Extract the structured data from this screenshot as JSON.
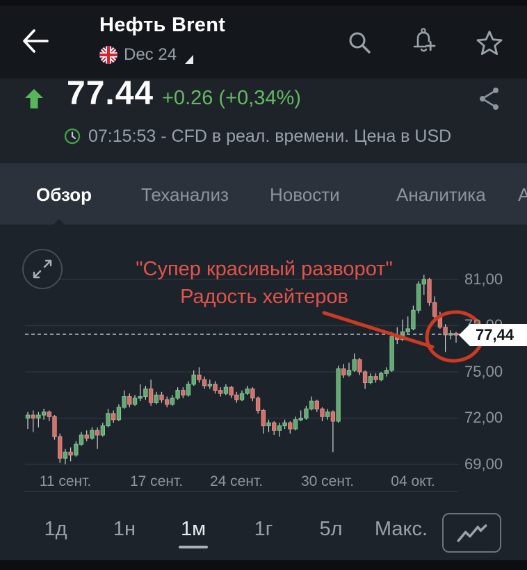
{
  "header": {
    "title": "Нефть Brent",
    "contract": "Dec 24",
    "flag": "uk-flag"
  },
  "price": {
    "value": "77.44",
    "change": "+0.26 (+0,34%)",
    "info": "07:15:53 - CFD в реал. времени. Цена в USD"
  },
  "tabs": [
    {
      "label": "Обзор",
      "active": true
    },
    {
      "label": "Теханализ",
      "active": false
    },
    {
      "label": "Новости",
      "active": false
    },
    {
      "label": "Аналитика",
      "active": false
    },
    {
      "label": "А",
      "active": false
    }
  ],
  "annotation": {
    "line1": "\"Супер красивый разворот\"",
    "line2": "Радость хейтеров"
  },
  "price_tag": "77,44",
  "chart_data": {
    "type": "candlestick",
    "title": "Нефть Brent, 1м",
    "current_price": 77.44,
    "y_axis": {
      "values": [
        81,
        78,
        75,
        72,
        69
      ],
      "labels": [
        "81,00",
        "78,00",
        "75,00",
        "72,00",
        "69,00"
      ],
      "position": "right"
    },
    "x_axis": {
      "labels": [
        "11 сент.",
        "17 сент.",
        "24 сент.",
        "30 сент.",
        "04 окт."
      ],
      "tick_candle_index": [
        7,
        24,
        39,
        56,
        72
      ]
    },
    "grid": "horizontal-only",
    "candles_ohlc": [
      [
        72.0,
        72.4,
        71.3,
        72.2
      ],
      [
        72.2,
        72.5,
        71.1,
        72.0
      ],
      [
        72.0,
        72.4,
        71.4,
        72.2
      ],
      [
        72.2,
        72.6,
        71.9,
        72.4
      ],
      [
        72.4,
        72.5,
        71.8,
        72.1
      ],
      [
        72.1,
        72.2,
        70.6,
        70.8
      ],
      [
        70.8,
        71.0,
        69.1,
        69.4
      ],
      [
        69.4,
        70.0,
        69.0,
        69.8
      ],
      [
        69.8,
        70.1,
        69.2,
        69.6
      ],
      [
        69.6,
        70.5,
        69.5,
        70.3
      ],
      [
        70.3,
        71.1,
        70.2,
        70.9
      ],
      [
        70.9,
        71.2,
        70.5,
        70.7
      ],
      [
        70.7,
        71.4,
        70.6,
        71.2
      ],
      [
        71.2,
        71.4,
        70.0,
        70.9
      ],
      [
        70.9,
        71.7,
        70.8,
        71.5
      ],
      [
        71.5,
        72.6,
        71.4,
        72.3
      ],
      [
        72.3,
        72.5,
        71.7,
        71.9
      ],
      [
        71.9,
        72.9,
        71.8,
        72.7
      ],
      [
        72.7,
        73.8,
        72.6,
        73.4
      ],
      [
        73.4,
        73.6,
        72.7,
        72.9
      ],
      [
        72.9,
        73.5,
        72.8,
        73.3
      ],
      [
        73.3,
        74.2,
        73.1,
        73.4
      ],
      [
        73.4,
        74.1,
        73.2,
        73.9
      ],
      [
        73.9,
        74.5,
        72.8,
        73.0
      ],
      [
        73.0,
        73.7,
        72.9,
        73.5
      ],
      [
        73.5,
        73.7,
        73.0,
        73.2
      ],
      [
        73.2,
        73.4,
        72.7,
        72.9
      ],
      [
        72.9,
        73.5,
        72.8,
        73.3
      ],
      [
        73.3,
        74.0,
        73.2,
        73.8
      ],
      [
        73.8,
        74.0,
        73.3,
        73.5
      ],
      [
        73.5,
        74.4,
        73.4,
        74.2
      ],
      [
        74.2,
        75.1,
        74.1,
        74.8
      ],
      [
        74.8,
        75.3,
        74.3,
        74.5
      ],
      [
        74.5,
        74.7,
        73.9,
        74.1
      ],
      [
        74.1,
        74.5,
        73.9,
        74.2
      ],
      [
        74.2,
        74.4,
        73.6,
        73.8
      ],
      [
        73.8,
        74.0,
        73.4,
        73.6
      ],
      [
        73.6,
        74.2,
        73.5,
        74.0
      ],
      [
        74.0,
        74.1,
        73.3,
        73.5
      ],
      [
        73.5,
        73.7,
        73.0,
        73.2
      ],
      [
        73.2,
        73.8,
        73.1,
        73.6
      ],
      [
        73.6,
        74.1,
        73.5,
        73.9
      ],
      [
        73.9,
        74.0,
        73.1,
        73.3
      ],
      [
        73.3,
        73.4,
        72.3,
        72.5
      ],
      [
        72.5,
        72.6,
        71.0,
        71.5
      ],
      [
        71.5,
        71.9,
        71.1,
        71.7
      ],
      [
        71.7,
        71.8,
        70.9,
        71.2
      ],
      [
        71.2,
        71.7,
        70.8,
        71.5
      ],
      [
        71.5,
        71.9,
        71.3,
        71.7
      ],
      [
        71.7,
        71.8,
        71.0,
        71.3
      ],
      [
        71.3,
        72.1,
        71.2,
        71.9
      ],
      [
        71.9,
        72.5,
        71.8,
        72.0
      ],
      [
        72.0,
        72.8,
        71.9,
        72.6
      ],
      [
        72.6,
        73.4,
        72.5,
        73.1
      ],
      [
        73.1,
        73.2,
        72.4,
        72.6
      ],
      [
        72.6,
        72.7,
        71.8,
        72.1
      ],
      [
        72.1,
        72.6,
        71.9,
        72.4
      ],
      [
        72.4,
        72.5,
        69.8,
        71.8
      ],
      [
        71.8,
        75.4,
        71.7,
        75.2
      ],
      [
        75.2,
        75.5,
        74.6,
        74.8
      ],
      [
        74.8,
        75.6,
        74.7,
        75.1
      ],
      [
        75.1,
        76.2,
        75.0,
        75.8
      ],
      [
        75.8,
        75.9,
        74.8,
        75.0
      ],
      [
        75.0,
        75.1,
        73.9,
        74.3
      ],
      [
        74.3,
        74.9,
        74.2,
        74.7
      ],
      [
        74.7,
        74.9,
        74.3,
        74.5
      ],
      [
        74.5,
        75.0,
        74.4,
        74.9
      ],
      [
        74.9,
        75.3,
        74.7,
        75.1
      ],
      [
        75.1,
        77.6,
        75.0,
        77.3
      ],
      [
        77.3,
        77.9,
        76.8,
        77.1
      ],
      [
        77.1,
        78.4,
        77.0,
        77.6
      ],
      [
        77.6,
        78.6,
        77.4,
        77.8
      ],
      [
        77.8,
        79.3,
        77.7,
        79.0
      ],
      [
        79.0,
        80.9,
        78.8,
        80.7
      ],
      [
        80.7,
        81.3,
        80.0,
        81.0
      ],
      [
        81.0,
        81.1,
        79.3,
        79.5
      ],
      [
        79.5,
        79.9,
        78.4,
        78.6
      ],
      [
        78.6,
        78.9,
        77.8,
        77.9
      ],
      [
        77.9,
        78.1,
        76.3,
        77.4
      ],
      [
        77.4,
        77.7,
        77.1,
        77.5
      ],
      [
        77.5,
        77.6,
        76.9,
        77.4
      ]
    ]
  },
  "ranges": [
    {
      "label": "1д",
      "active": false
    },
    {
      "label": "1н",
      "active": false
    },
    {
      "label": "1м",
      "active": true
    },
    {
      "label": "1г",
      "active": false
    },
    {
      "label": "5л",
      "active": false
    },
    {
      "label": "Макс.",
      "active": false
    }
  ],
  "colors": {
    "candle_up": "#61a871",
    "candle_up_border": "#84c493",
    "candle_down": "#d2706a",
    "candle_down_border": "#e08d86",
    "wick": "#ccd2d8",
    "gridline": "#2e3740",
    "dashed_price_line": "#9aa2ab",
    "annotation_red": "#cb3a22",
    "change_green": "#63b962",
    "tabbar_bg": "#2b323c",
    "panel_bg": "#1c232b"
  }
}
